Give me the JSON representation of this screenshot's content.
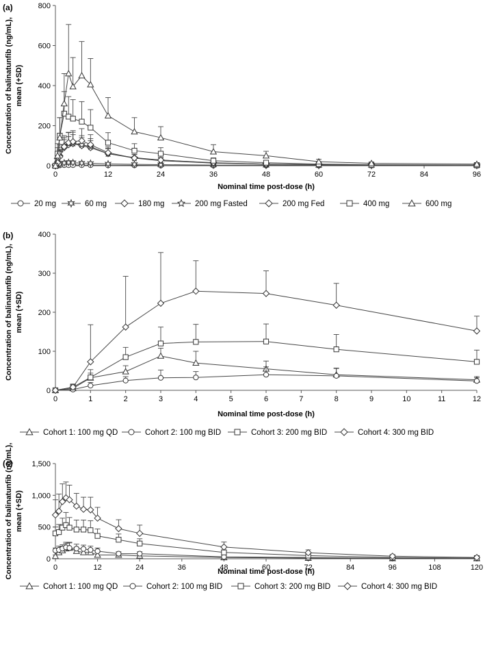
{
  "chart_data": [
    {
      "panel_label": "(a)",
      "type": "line",
      "title": "",
      "xlabel": "Nominal time post-dose (h)",
      "ylabel_lines": [
        "Concentration of balinatunfib (ng/mL),",
        "mean (+SD)"
      ],
      "xlim": [
        0,
        96
      ],
      "ylim": [
        0,
        800
      ],
      "xticks": [
        0,
        12,
        24,
        36,
        48,
        60,
        72,
        84,
        96
      ],
      "yticks": [
        0,
        200,
        400,
        600,
        800
      ],
      "xtick_labels": [
        "0",
        "12",
        "24",
        "36",
        "48",
        "60",
        "72",
        "84",
        "96"
      ],
      "ytick_labels": [
        "0",
        "200",
        "400",
        "600",
        "800"
      ],
      "legend_position": "bottom",
      "series": [
        {
          "name": "20 mg",
          "marker": "circle",
          "x": [
            0,
            0.5,
            1,
            2,
            3,
            4,
            6,
            8,
            12,
            18,
            24,
            36,
            48,
            60,
            72,
            96
          ],
          "y": [
            0,
            1,
            2,
            3,
            3,
            3,
            3,
            3,
            2,
            2,
            1,
            1,
            1,
            1,
            1,
            0
          ],
          "sd": [
            0,
            1,
            1,
            2,
            2,
            2,
            2,
            2,
            1,
            1,
            1,
            1,
            1,
            1,
            0,
            0
          ]
        },
        {
          "name": "60 mg",
          "marker": "star6",
          "x": [
            0,
            0.5,
            1,
            2,
            3,
            4,
            6,
            8,
            12,
            18,
            24,
            36,
            48,
            60,
            72,
            96
          ],
          "y": [
            0,
            3,
            8,
            14,
            16,
            15,
            13,
            12,
            9,
            7,
            5,
            3,
            2,
            1,
            1,
            1
          ],
          "sd": [
            0,
            3,
            6,
            8,
            9,
            9,
            8,
            7,
            5,
            4,
            3,
            2,
            2,
            1,
            1,
            1
          ]
        },
        {
          "name": "180 mg",
          "marker": "diamond",
          "x": [
            0,
            0.5,
            1,
            2,
            3,
            4,
            6,
            8,
            12,
            18,
            24,
            36,
            48,
            60,
            72,
            96
          ],
          "y": [
            0,
            20,
            50,
            90,
            105,
            110,
            100,
            90,
            60,
            40,
            28,
            14,
            8,
            4,
            3,
            2
          ],
          "sd": [
            0,
            15,
            30,
            40,
            40,
            45,
            40,
            35,
            25,
            16,
            12,
            7,
            5,
            3,
            2,
            1
          ]
        },
        {
          "name": "200 mg Fasted",
          "marker": "star5",
          "x": [
            0,
            0.5,
            1,
            2,
            3,
            4,
            6,
            8,
            12,
            18,
            24,
            36,
            48,
            60,
            72,
            96
          ],
          "y": [
            0,
            30,
            65,
            100,
            112,
            112,
            105,
            95,
            60,
            38,
            25,
            13,
            7,
            4,
            3,
            2
          ],
          "sd": [
            0,
            20,
            40,
            50,
            55,
            55,
            45,
            40,
            28,
            18,
            13,
            7,
            5,
            3,
            2,
            1
          ]
        },
        {
          "name": "200 mg Fed",
          "marker": "diamond",
          "x": [
            0,
            0.5,
            1,
            2,
            3,
            4,
            6,
            8,
            12,
            18,
            24,
            36,
            48,
            60,
            72,
            96
          ],
          "y": [
            0,
            15,
            45,
            95,
            115,
            120,
            125,
            105,
            65,
            38,
            28,
            15,
            8,
            5,
            3,
            2
          ],
          "sd": [
            0,
            10,
            30,
            45,
            50,
            55,
            60,
            50,
            30,
            18,
            13,
            8,
            5,
            3,
            2,
            1
          ]
        },
        {
          "name": "400 mg",
          "marker": "square",
          "x": [
            0,
            0.5,
            1,
            2,
            3,
            4,
            6,
            8,
            12,
            18,
            24,
            36,
            48,
            60,
            72,
            96
          ],
          "y": [
            0,
            60,
            150,
            260,
            245,
            235,
            220,
            190,
            115,
            75,
            60,
            25,
            15,
            8,
            5,
            3
          ],
          "sd": [
            0,
            50,
            90,
            110,
            100,
            95,
            100,
            90,
            50,
            35,
            30,
            14,
            9,
            5,
            4,
            2
          ]
        },
        {
          "name": "600 mg",
          "marker": "triangle",
          "x": [
            0,
            0.5,
            1,
            2,
            3,
            4,
            6,
            8,
            12,
            18,
            24,
            36,
            48,
            60,
            72,
            96
          ],
          "y": [
            0,
            50,
            140,
            310,
            460,
            395,
            450,
            405,
            250,
            170,
            140,
            70,
            50,
            20,
            12,
            8
          ],
          "sd": [
            0,
            40,
            100,
            150,
            245,
            145,
            170,
            130,
            90,
            70,
            55,
            35,
            22,
            12,
            7,
            4
          ]
        }
      ],
      "legend": [
        {
          "label": "20 mg",
          "marker": "circle"
        },
        {
          "label": "60 mg",
          "marker": "star6"
        },
        {
          "label": "180 mg",
          "marker": "diamond"
        },
        {
          "label": "200 mg Fasted",
          "marker": "star5"
        },
        {
          "label": "200 mg Fed",
          "marker": "diamond"
        },
        {
          "label": "400 mg",
          "marker": "square"
        },
        {
          "label": "600 mg",
          "marker": "triangle"
        }
      ]
    },
    {
      "panel_label": "(b)",
      "type": "line",
      "title": "",
      "xlabel": "Nominal time post-dose (h)",
      "ylabel_lines": [
        "Concentration of balinatunfib (ng/mL),",
        "mean (+SD)"
      ],
      "xlim": [
        0,
        12
      ],
      "ylim": [
        0,
        400
      ],
      "xticks": [
        0,
        1,
        2,
        3,
        4,
        5,
        6,
        7,
        8,
        9,
        10,
        11,
        12
      ],
      "yticks": [
        0,
        100,
        200,
        300,
        400
      ],
      "xtick_labels": [
        "0",
        "1",
        "2",
        "3",
        "4",
        "5",
        "6",
        "7",
        "8",
        "9",
        "10",
        "11",
        "12"
      ],
      "ytick_labels": [
        "0",
        "100",
        "200",
        "300",
        "400"
      ],
      "legend_position": "bottom",
      "series": [
        {
          "name": "Cohort 1: 100 mg QD",
          "marker": "triangle",
          "x": [
            0,
            0.5,
            1,
            2,
            3,
            4,
            6,
            8,
            12
          ],
          "y": [
            0,
            5,
            32,
            48,
            88,
            70,
            55,
            40,
            27
          ],
          "sd": [
            0,
            5,
            12,
            15,
            20,
            30,
            20,
            16,
            8
          ]
        },
        {
          "name": "Cohort 2: 100 mg BID",
          "marker": "circle",
          "x": [
            0,
            0.5,
            1,
            2,
            3,
            4,
            6,
            8,
            12
          ],
          "y": [
            0,
            2,
            12,
            25,
            32,
            33,
            40,
            37,
            24
          ],
          "sd": [
            0,
            2,
            8,
            10,
            20,
            15,
            20,
            20,
            8
          ]
        },
        {
          "name": "Cohort 3: 200 mg BID",
          "marker": "square",
          "x": [
            0,
            0.5,
            1,
            2,
            3,
            4,
            6,
            8,
            12
          ],
          "y": [
            0,
            8,
            33,
            85,
            120,
            124,
            125,
            105,
            73
          ],
          "sd": [
            0,
            8,
            20,
            25,
            42,
            45,
            45,
            38,
            30
          ]
        },
        {
          "name": "Cohort 4: 300 mg BID",
          "marker": "diamond",
          "x": [
            0,
            0.5,
            1,
            2,
            3,
            4,
            6,
            8,
            12
          ],
          "y": [
            0,
            8,
            73,
            162,
            223,
            254,
            248,
            218,
            152
          ],
          "sd": [
            0,
            8,
            95,
            130,
            130,
            78,
            58,
            56,
            38
          ]
        }
      ],
      "legend": [
        {
          "label": "Cohort 1: 100 mg QD",
          "marker": "triangle"
        },
        {
          "label": "Cohort 2: 100 mg BID",
          "marker": "circle"
        },
        {
          "label": "Cohort 3: 200 mg BID",
          "marker": "square"
        },
        {
          "label": "Cohort 4: 300 mg BID",
          "marker": "diamond"
        }
      ]
    },
    {
      "panel_label": "(c)",
      "type": "line",
      "title": "",
      "xlabel": "Nominal time post-dose (h)",
      "ylabel_lines": [
        "Concentration of balinatunfib (ng/mL),",
        "mean (+SD)"
      ],
      "xlim": [
        0,
        120
      ],
      "ylim": [
        0,
        1500
      ],
      "xticks": [
        0,
        12,
        24,
        36,
        48,
        60,
        72,
        84,
        96,
        108,
        120
      ],
      "yticks": [
        0,
        500,
        1000,
        1500
      ],
      "xtick_labels": [
        "0",
        "12",
        "24",
        "36",
        "48",
        "60",
        "72",
        "84",
        "96",
        "108",
        "120"
      ],
      "ytick_labels": [
        "0",
        "500",
        "1,000",
        "1,500"
      ],
      "legend_position": "bottom",
      "series": [
        {
          "name": "Cohort 1: 100 mg QD",
          "marker": "triangle",
          "x": [
            0,
            1,
            2,
            3,
            4,
            6,
            8,
            10,
            12,
            18,
            24,
            48,
            72,
            96,
            120
          ],
          "y": [
            40,
            100,
            130,
            160,
            170,
            120,
            100,
            100,
            60,
            60,
            45,
            20,
            10,
            5,
            5
          ],
          "sd": [
            20,
            50,
            60,
            80,
            90,
            60,
            50,
            50,
            40,
            30,
            25,
            12,
            8,
            4,
            3
          ]
        },
        {
          "name": "Cohort 2: 100 mg BID",
          "marker": "circle",
          "x": [
            0,
            1,
            2,
            3,
            4,
            6,
            8,
            10,
            12,
            18,
            24,
            48,
            72,
            96,
            120
          ],
          "y": [
            130,
            140,
            160,
            180,
            170,
            160,
            155,
            140,
            120,
            80,
            80,
            30,
            20,
            10,
            5
          ],
          "sd": [
            40,
            60,
            60,
            80,
            80,
            70,
            60,
            60,
            50,
            30,
            30,
            15,
            10,
            6,
            3
          ]
        },
        {
          "name": "Cohort 3: 200 mg BID",
          "marker": "square",
          "x": [
            0,
            1,
            2,
            3,
            4,
            6,
            8,
            10,
            12,
            18,
            24,
            48,
            72,
            96,
            120
          ],
          "y": [
            400,
            420,
            490,
            530,
            490,
            460,
            460,
            450,
            360,
            300,
            240,
            100,
            50,
            20,
            10
          ],
          "sd": [
            100,
            120,
            150,
            200,
            160,
            150,
            150,
            150,
            110,
            90,
            75,
            40,
            25,
            12,
            6
          ]
        },
        {
          "name": "Cohort 4: 300 mg BID",
          "marker": "diamond",
          "x": [
            0,
            1,
            2,
            3,
            4,
            6,
            8,
            10,
            12,
            18,
            24,
            48,
            72,
            96,
            120
          ],
          "y": [
            690,
            750,
            900,
            960,
            930,
            830,
            780,
            770,
            640,
            475,
            400,
            185,
            95,
            40,
            20
          ],
          "sd": [
            240,
            270,
            280,
            250,
            230,
            200,
            190,
            200,
            170,
            140,
            130,
            80,
            45,
            25,
            12
          ]
        }
      ],
      "legend": [
        {
          "label": "Cohort 1: 100 mg QD",
          "marker": "triangle"
        },
        {
          "label": "Cohort 2: 100 mg BID",
          "marker": "circle"
        },
        {
          "label": "Cohort 3: 200 mg BID",
          "marker": "square"
        },
        {
          "label": "Cohort 4: 300 mg BID",
          "marker": "diamond"
        }
      ]
    }
  ]
}
